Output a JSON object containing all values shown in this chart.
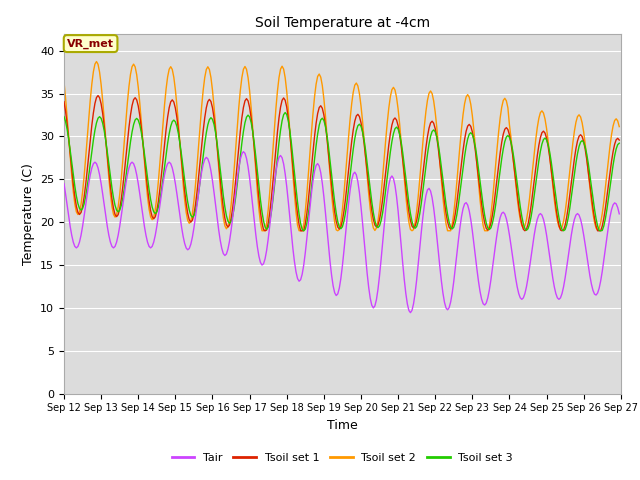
{
  "title": "Soil Temperature at -4cm",
  "xlabel": "Time",
  "ylabel": "Temperature (C)",
  "ylim": [
    0,
    42
  ],
  "yticks": [
    0,
    5,
    10,
    15,
    20,
    25,
    30,
    35,
    40
  ],
  "xlim": [
    0,
    360
  ],
  "background_color": "#dcdcdc",
  "plot_bg_color": "#dcdcdc",
  "fig_bg_color": "#ffffff",
  "grid_color": "#ffffff",
  "annotation_text": "VR_met",
  "annotation_box_color": "#ffffcc",
  "annotation_border_color": "#aaaa00",
  "legend_labels": [
    "Tair",
    "Tsoil set 1",
    "Tsoil set 2",
    "Tsoil set 3"
  ],
  "line_colors": [
    "#cc44ff",
    "#dd2200",
    "#ff9900",
    "#22cc00"
  ],
  "xtick_labels": [
    "Sep 12",
    "Sep 13",
    "Sep 14",
    "Sep 15",
    "Sep 16",
    "Sep 17",
    "Sep 18",
    "Sep 19",
    "Sep 20",
    "Sep 21",
    "Sep 22",
    "Sep 23",
    "Sep 24",
    "Sep 25",
    "Sep 26",
    "Sep 27"
  ],
  "xtick_positions": [
    0,
    24,
    48,
    72,
    96,
    120,
    144,
    168,
    192,
    216,
    240,
    264,
    288,
    312,
    336,
    360
  ],
  "hours": 360,
  "period": 24.0
}
